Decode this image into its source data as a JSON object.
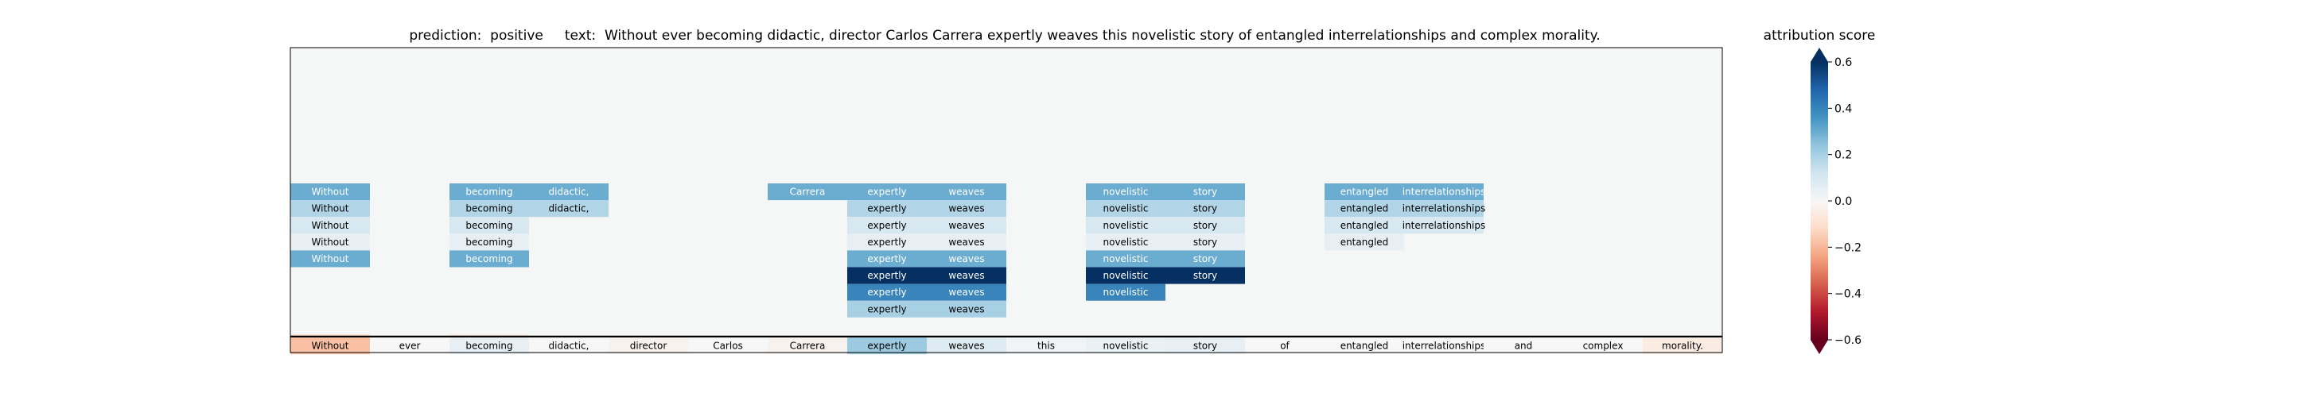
{
  "chart_data": {
    "type": "heatmap",
    "title_prediction": "prediction:  positive",
    "title_text": "text:  Without ever becoming didactic, director Carlos Carrera expertly weaves this novelistic story of entangled interrelationships and complex morality.",
    "tokens": [
      "Without",
      "ever",
      "becoming",
      "didactic,",
      "director",
      "Carlos",
      "Carrera",
      "expertly",
      "weaves",
      "this",
      "novelistic",
      "story",
      "of",
      "entangled",
      "interrelationships",
      "and",
      "complex",
      "morality."
    ],
    "input_row_scores": [
      -0.18,
      0.0,
      0.05,
      0.0,
      -0.02,
      0.0,
      -0.02,
      0.22,
      0.08,
      0.02,
      0.04,
      0.05,
      0.0,
      0.0,
      0.0,
      0.0,
      0.0,
      -0.05
    ],
    "rows": [
      {
        "cells": [
          [
            0,
            0.3
          ],
          [
            2,
            0.3
          ],
          [
            3,
            0.3
          ],
          [
            6,
            0.3
          ],
          [
            7,
            0.3
          ],
          [
            8,
            0.3
          ],
          [
            10,
            0.3
          ],
          [
            11,
            0.3
          ],
          [
            13,
            0.3
          ],
          [
            14,
            0.3
          ]
        ]
      },
      {
        "cells": [
          [
            0,
            0.18
          ],
          [
            2,
            0.18
          ],
          [
            3,
            0.18
          ],
          [
            7,
            0.18
          ],
          [
            8,
            0.18
          ],
          [
            10,
            0.18
          ],
          [
            11,
            0.18
          ],
          [
            13,
            0.18
          ],
          [
            14,
            0.18
          ]
        ]
      },
      {
        "cells": [
          [
            0,
            0.1
          ],
          [
            2,
            0.1
          ],
          [
            7,
            0.1
          ],
          [
            8,
            0.1
          ],
          [
            10,
            0.1
          ],
          [
            11,
            0.1
          ],
          [
            13,
            0.1
          ],
          [
            14,
            0.1
          ]
        ]
      },
      {
        "cells": [
          [
            0,
            0.05
          ],
          [
            2,
            0.05
          ],
          [
            7,
            0.05
          ],
          [
            8,
            0.05
          ],
          [
            10,
            0.05
          ],
          [
            11,
            0.05
          ],
          [
            13,
            0.05
          ]
        ]
      },
      {
        "cells": [
          [
            0,
            0.3
          ],
          [
            2,
            0.3
          ],
          [
            7,
            0.3
          ],
          [
            8,
            0.3
          ],
          [
            10,
            0.3
          ],
          [
            11,
            0.3
          ]
        ]
      },
      {
        "cells": [
          [
            7,
            0.6
          ],
          [
            8,
            0.6
          ],
          [
            10,
            0.6
          ],
          [
            11,
            0.6
          ]
        ]
      },
      {
        "cells": [
          [
            7,
            0.4
          ],
          [
            8,
            0.4
          ],
          [
            10,
            0.4
          ]
        ]
      },
      {
        "cells": [
          [
            7,
            0.2
          ],
          [
            8,
            0.2
          ]
        ]
      },
      {
        "cells": []
      },
      {
        "cells": [
          [
            0,
            -0.1
          ],
          [
            2,
            -0.06
          ]
        ]
      }
    ],
    "colorbar": {
      "label": "attribution score",
      "range": [
        -0.6,
        0.6
      ],
      "ticks": [
        0.6,
        0.4,
        0.2,
        0.0,
        -0.2,
        -0.4,
        -0.6
      ],
      "tick_labels": [
        "0.6",
        "0.4",
        "0.2",
        "0.0",
        "−0.2",
        "−0.4",
        "−0.6"
      ],
      "colormap": "RdBu"
    },
    "colors": {
      "background": "#f5f6f6",
      "frame": "#000000"
    }
  }
}
